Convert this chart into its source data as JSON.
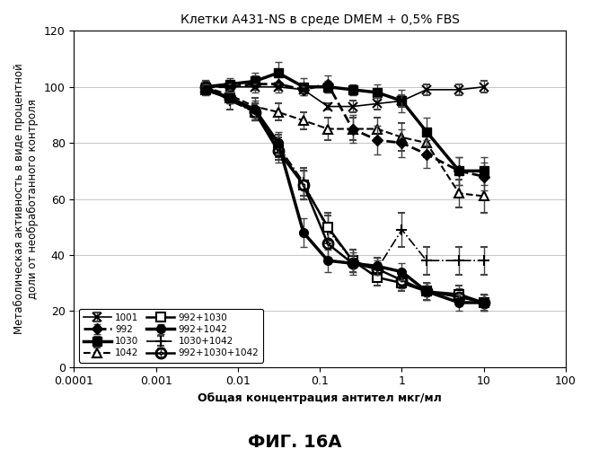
{
  "title": "Клетки А431-NS в среде DMEM + 0,5% FBS",
  "xlabel": "Общая концентрация антител мкг/мл",
  "ylabel": "Метаболическая активность в виде процентной\nдоли от необработанного контроля",
  "caption": "ФИГ. 16А",
  "xlim": [
    0.0001,
    100
  ],
  "ylim": [
    0,
    120
  ],
  "yticks": [
    0,
    20,
    40,
    60,
    80,
    100,
    120
  ],
  "series": [
    {
      "label": "1001",
      "x": [
        0.004,
        0.008,
        0.016,
        0.031,
        0.063,
        0.125,
        0.25,
        0.5,
        1,
        2,
        5,
        10
      ],
      "y": [
        100,
        100,
        100,
        100,
        99,
        93,
        93,
        94,
        95,
        99,
        99,
        100
      ],
      "yerr": [
        2,
        1,
        1,
        1,
        1,
        1,
        2,
        2,
        2,
        2,
        2,
        2
      ],
      "color": "#000000",
      "linestyle": "-",
      "marker": "x",
      "linewidth": 1.2,
      "markersize": 7,
      "markerfacecolor": "#000000",
      "markeredgewidth": 1.5,
      "zorder": 5
    },
    {
      "label": "1030",
      "x": [
        0.004,
        0.008,
        0.016,
        0.031,
        0.063,
        0.125,
        0.25,
        0.5,
        1,
        2,
        5,
        10
      ],
      "y": [
        100,
        101,
        102,
        105,
        100,
        100,
        99,
        98,
        95,
        84,
        70,
        70
      ],
      "yerr": [
        2,
        2,
        3,
        4,
        3,
        2,
        2,
        3,
        4,
        5,
        5,
        5
      ],
      "color": "#000000",
      "linestyle": "-",
      "marker": "s",
      "linewidth": 2.5,
      "markersize": 7,
      "markerfacecolor": "#000000",
      "markeredgewidth": 1.0,
      "zorder": 4
    },
    {
      "label": "992+1030",
      "x": [
        0.004,
        0.008,
        0.016,
        0.031,
        0.063,
        0.125,
        0.25,
        0.5,
        1,
        2,
        5,
        10
      ],
      "y": [
        99,
        96,
        91,
        78,
        65,
        50,
        38,
        32,
        30,
        27,
        26,
        23
      ],
      "yerr": [
        2,
        2,
        3,
        4,
        5,
        5,
        4,
        3,
        3,
        3,
        3,
        3
      ],
      "color": "#000000",
      "linestyle": "-",
      "marker": "s",
      "linewidth": 1.8,
      "markersize": 7,
      "markerfacecolor": "white",
      "markeredgewidth": 1.5,
      "zorder": 6
    },
    {
      "label": "1030+1042",
      "x": [
        0.004,
        0.008,
        0.016,
        0.031,
        0.063,
        0.125,
        0.25,
        0.5,
        1,
        2,
        5,
        10
      ],
      "y": [
        100,
        95,
        91,
        79,
        66,
        49,
        38,
        35,
        49,
        38,
        38,
        38
      ],
      "yerr": [
        2,
        3,
        3,
        4,
        5,
        5,
        4,
        4,
        6,
        5,
        5,
        5
      ],
      "color": "#000000",
      "linestyle": "-.",
      "marker": "+",
      "linewidth": 1.2,
      "markersize": 9,
      "markerfacecolor": "#000000",
      "markeredgewidth": 1.5,
      "zorder": 3
    },
    {
      "label": "992",
      "x": [
        0.004,
        0.008,
        0.016,
        0.031,
        0.063,
        0.125,
        0.25,
        0.5,
        1,
        2,
        5,
        10
      ],
      "y": [
        100,
        100,
        101,
        101,
        99,
        101,
        85,
        81,
        80,
        76,
        70,
        68
      ],
      "yerr": [
        2,
        2,
        3,
        3,
        2,
        3,
        5,
        5,
        5,
        5,
        5,
        5
      ],
      "color": "#000000",
      "linestyle": "--",
      "marker": "D",
      "linewidth": 2.0,
      "markersize": 6,
      "markerfacecolor": "#000000",
      "markeredgewidth": 1.0,
      "zorder": 4
    },
    {
      "label": "1042",
      "x": [
        0.004,
        0.008,
        0.016,
        0.031,
        0.063,
        0.125,
        0.25,
        0.5,
        1,
        2,
        5,
        10
      ],
      "y": [
        100,
        97,
        93,
        91,
        88,
        85,
        85,
        85,
        82,
        80,
        62,
        61
      ],
      "yerr": [
        2,
        2,
        3,
        3,
        3,
        4,
        4,
        4,
        5,
        5,
        5,
        6
      ],
      "color": "#000000",
      "linestyle": "--",
      "marker": "^",
      "linewidth": 1.5,
      "markersize": 7,
      "markerfacecolor": "white",
      "markeredgewidth": 1.5,
      "zorder": 3
    },
    {
      "label": "992+1042",
      "x": [
        0.004,
        0.008,
        0.016,
        0.031,
        0.063,
        0.125,
        0.25,
        0.5,
        1,
        2,
        5,
        10
      ],
      "y": [
        99,
        96,
        92,
        80,
        48,
        38,
        37,
        36,
        34,
        27,
        23,
        23
      ],
      "yerr": [
        2,
        2,
        3,
        4,
        5,
        4,
        3,
        3,
        3,
        3,
        3,
        3
      ],
      "color": "#000000",
      "linestyle": "-",
      "marker": "o",
      "linewidth": 2.5,
      "markersize": 7,
      "markerfacecolor": "#000000",
      "markeredgewidth": 1.0,
      "zorder": 7
    },
    {
      "label": "992+1030+1042",
      "x": [
        0.004,
        0.008,
        0.016,
        0.031,
        0.063,
        0.125,
        0.25,
        0.5,
        1,
        2,
        5,
        10
      ],
      "y": [
        100,
        96,
        91,
        77,
        65,
        44,
        37,
        35,
        31,
        27,
        25,
        23
      ],
      "yerr": [
        2,
        2,
        3,
        4,
        5,
        5,
        4,
        3,
        3,
        3,
        3,
        3
      ],
      "color": "#000000",
      "linestyle": "-",
      "marker": "$\\odot$",
      "linewidth": 1.8,
      "markersize": 9,
      "markerfacecolor": "white",
      "markeredgewidth": 1.0,
      "zorder": 6
    }
  ],
  "legend_order": [
    0,
    4,
    1,
    5,
    2,
    6,
    3,
    7
  ],
  "legend_labels": [
    "1001",
    "992",
    "1030",
    "1042",
    "992+1030",
    "992+1042",
    "1030+1042",
    "992+1030+1042"
  ]
}
